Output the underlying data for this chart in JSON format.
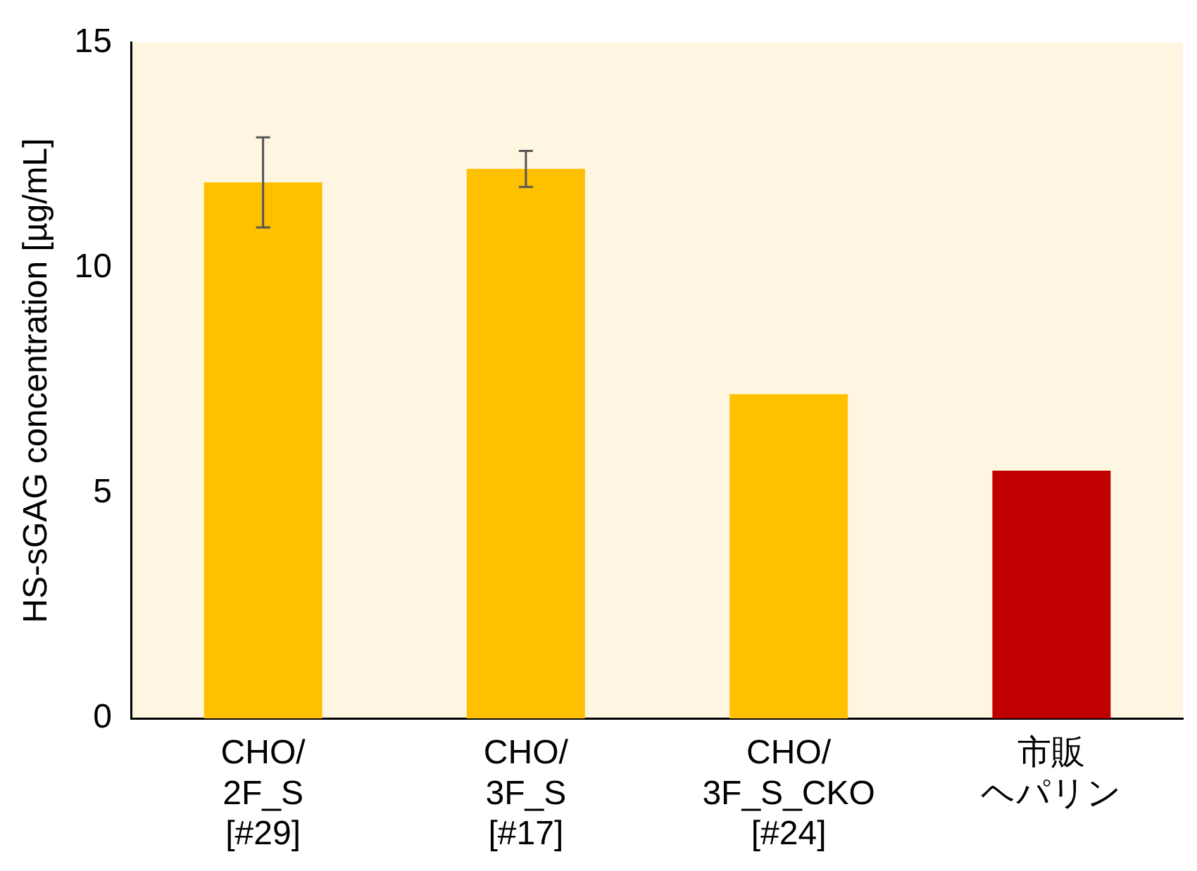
{
  "chart_data": {
    "type": "bar",
    "ylabel": "HS-sGAG concentration [µg/mL]",
    "categories": [
      "CHO/\n2F_S\n[#29]",
      "CHO/\n3F_S\n[#17]",
      "CHO/\n3F_S_CKO\n[#24]",
      "市販ヘパリン"
    ],
    "values": [
      11.9,
      12.2,
      7.2,
      5.5
    ],
    "colors": [
      "#ffc000",
      "#ffc000",
      "#ffc000",
      "#c00000"
    ],
    "errors": [
      [
        10.9,
        12.9
      ],
      [
        11.8,
        12.6
      ],
      null,
      null
    ],
    "ylim": [
      0,
      15
    ],
    "yticks": [
      0,
      5,
      10,
      15
    ],
    "grid": false,
    "legend": false
  }
}
